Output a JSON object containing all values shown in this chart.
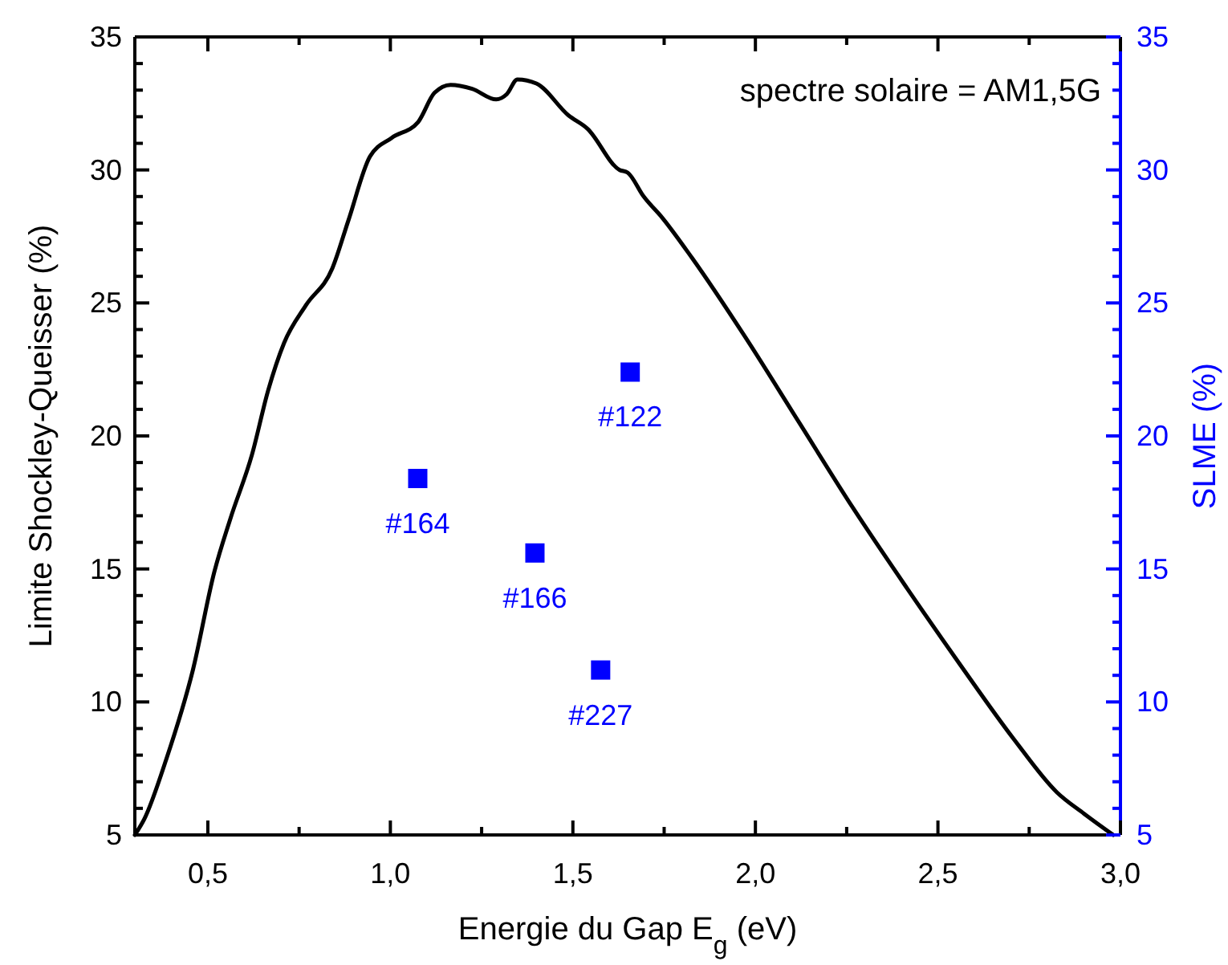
{
  "chart_data": {
    "type": "line",
    "xlabel": "Energie du Gap E$_{g}$ (eV)",
    "ylabel": "Limite Shockley-Queisser (%)",
    "y2label": "SLME (%)",
    "xlim": [
      0.3,
      3.0
    ],
    "ylim": [
      5,
      35
    ],
    "y2lim": [
      5,
      35
    ],
    "xticks": [
      {
        "value": 0.5,
        "label": "0,5"
      },
      {
        "value": 0.75,
        "label": null
      },
      {
        "value": 1.0,
        "label": "1,0"
      },
      {
        "value": 1.25,
        "label": null
      },
      {
        "value": 1.5,
        "label": "1,5"
      },
      {
        "value": 1.75,
        "label": null
      },
      {
        "value": 2.0,
        "label": "2,0"
      },
      {
        "value": 2.25,
        "label": null
      },
      {
        "value": 2.5,
        "label": "2,5"
      },
      {
        "value": 2.75,
        "label": null
      },
      {
        "value": 3.0,
        "label": "3,0"
      }
    ],
    "yticks": [
      5,
      {
        "value": 6,
        "label": null
      },
      {
        "value": 7,
        "label": null
      },
      {
        "value": 8,
        "label": null
      },
      {
        "value": 9,
        "label": null
      },
      10,
      {
        "value": 11,
        "label": null
      },
      {
        "value": 12,
        "label": null
      },
      {
        "value": 13,
        "label": null
      },
      {
        "value": 14,
        "label": null
      },
      15,
      {
        "value": 16,
        "label": null
      },
      {
        "value": 17,
        "label": null
      },
      {
        "value": 18,
        "label": null
      },
      {
        "value": 19,
        "label": null
      },
      20,
      {
        "value": 21,
        "label": null
      },
      {
        "value": 22,
        "label": null
      },
      {
        "value": 23,
        "label": null
      },
      {
        "value": 24,
        "label": null
      },
      25,
      {
        "value": 26,
        "label": null
      },
      {
        "value": 27,
        "label": null
      },
      {
        "value": 28,
        "label": null
      },
      {
        "value": 29,
        "label": null
      },
      30,
      {
        "value": 31,
        "label": null
      },
      {
        "value": 32,
        "label": null
      },
      {
        "value": 33,
        "label": null
      },
      {
        "value": 34,
        "label": null
      },
      35
    ],
    "y2ticks": [
      5,
      {
        "value": 6,
        "label": null
      },
      {
        "value": 7,
        "label": null
      },
      {
        "value": 8,
        "label": null
      },
      {
        "value": 9,
        "label": null
      },
      10,
      {
        "value": 11,
        "label": null
      },
      {
        "value": 12,
        "label": null
      },
      {
        "value": 13,
        "label": null
      },
      {
        "value": 14,
        "label": null
      },
      15,
      {
        "value": 16,
        "label": null
      },
      {
        "value": 17,
        "label": null
      },
      {
        "value": 18,
        "label": null
      },
      {
        "value": 19,
        "label": null
      },
      20,
      {
        "value": 21,
        "label": null
      },
      {
        "value": 22,
        "label": null
      },
      {
        "value": 23,
        "label": null
      },
      {
        "value": 24,
        "label": null
      },
      25,
      {
        "value": 26,
        "label": null
      },
      {
        "value": 27,
        "label": null
      },
      {
        "value": 28,
        "label": null
      },
      {
        "value": 29,
        "label": null
      },
      30,
      {
        "value": 31,
        "label": null
      },
      {
        "value": 32,
        "label": null
      },
      {
        "value": 33,
        "label": null
      },
      {
        "value": 34,
        "label": null
      },
      35
    ],
    "grid": false,
    "series": [
      {
        "color": "#000000",
        "line_style": "solid",
        "marker": "none",
        "x": [
          0.3,
          0.326,
          0.385,
          0.459,
          0.518,
          0.562,
          0.621,
          0.665,
          0.709,
          0.768,
          0.841,
          0.885,
          0.944,
          1.003,
          1.076,
          1.121,
          1.165,
          1.224,
          1.29,
          1.319,
          1.348,
          1.4,
          1.488,
          1.54,
          1.628,
          1.65,
          1.694,
          1.745,
          1.826,
          1.973,
          2.12,
          2.267,
          2.414,
          2.561,
          2.708,
          2.826,
          2.9,
          2.98
        ],
        "values": [
          5.0,
          5.6,
          7.8,
          11.2,
          14.9,
          16.9,
          19.3,
          21.7,
          23.5,
          24.9,
          26.3,
          28.1,
          30.5,
          31.2,
          31.8,
          32.9,
          33.2,
          33.05,
          32.65,
          32.85,
          33.4,
          33.25,
          32.05,
          31.55,
          30.0,
          29.9,
          29.0,
          28.2,
          26.7,
          23.7,
          20.5,
          17.3,
          14.3,
          11.4,
          8.6,
          6.6,
          5.8,
          5.0
        ]
      },
      {
        "type": "scatter",
        "axis": "y2",
        "color": "#0000ff",
        "marker": "square",
        "x": [
          1.075,
          1.396,
          1.576,
          1.657
        ],
        "values": [
          18.4,
          15.6,
          11.2,
          22.4
        ]
      }
    ],
    "annotations": [
      "spectre solaire = AM1,5G",
      {
        "text": "#164",
        "x": 1.075,
        "y": 18.4
      },
      {
        "text": "#166",
        "x": 1.396,
        "y": 15.6
      },
      {
        "text": "#227",
        "x": 1.576,
        "y": 11.2
      },
      {
        "text": "#122",
        "x": 1.657,
        "y": 22.4
      }
    ]
  }
}
